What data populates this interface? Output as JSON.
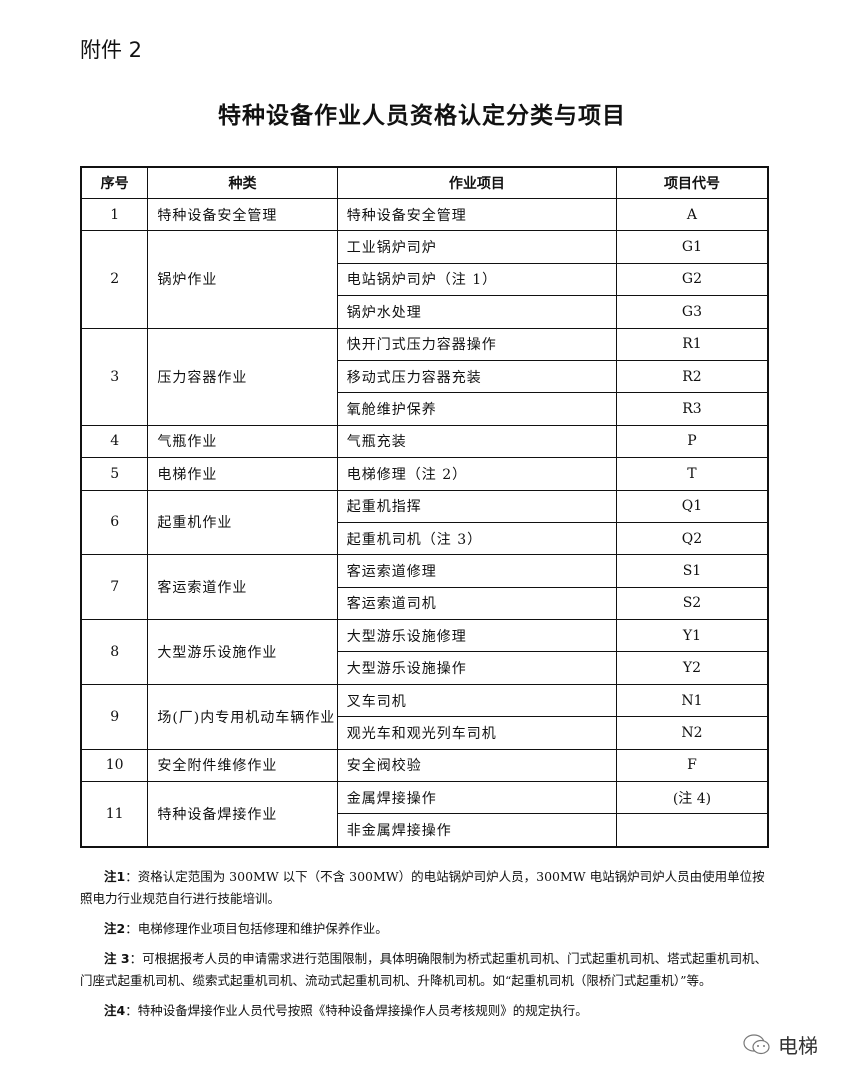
{
  "attachment": "附件 2",
  "title": "特种设备作业人员资格认定分类与项目",
  "headers": [
    "序号",
    "种类",
    "作业项目",
    "项目代号"
  ],
  "groups": [
    {
      "no": "1",
      "category": "特种设备安全管理",
      "items": [
        {
          "name": "特种设备安全管理",
          "code": "A"
        }
      ]
    },
    {
      "no": "2",
      "category": "锅炉作业",
      "items": [
        {
          "name": "工业锅炉司炉",
          "code": "G1"
        },
        {
          "name": "电站锅炉司炉（注 1）",
          "code": "G2"
        },
        {
          "name": "锅炉水处理",
          "code": "G3"
        }
      ]
    },
    {
      "no": "3",
      "category": "压力容器作业",
      "items": [
        {
          "name": "快开门式压力容器操作",
          "code": "R1"
        },
        {
          "name": "移动式压力容器充装",
          "code": "R2"
        },
        {
          "name": "氧舱维护保养",
          "code": "R3"
        }
      ]
    },
    {
      "no": "4",
      "category": "气瓶作业",
      "items": [
        {
          "name": "气瓶充装",
          "code": "P"
        }
      ]
    },
    {
      "no": "5",
      "category": "电梯作业",
      "items": [
        {
          "name": "电梯修理（注 2）",
          "code": "T"
        }
      ]
    },
    {
      "no": "6",
      "category": "起重机作业",
      "items": [
        {
          "name": "起重机指挥",
          "code": "Q1"
        },
        {
          "name": "起重机司机（注 3）",
          "code": "Q2"
        }
      ]
    },
    {
      "no": "7",
      "category": "客运索道作业",
      "items": [
        {
          "name": "客运索道修理",
          "code": "S1"
        },
        {
          "name": "客运索道司机",
          "code": "S2"
        }
      ]
    },
    {
      "no": "8",
      "category": "大型游乐设施作业",
      "items": [
        {
          "name": "大型游乐设施修理",
          "code": "Y1"
        },
        {
          "name": "大型游乐设施操作",
          "code": "Y2"
        }
      ]
    },
    {
      "no": "9",
      "category": "场(厂)内专用机动车辆作业",
      "items": [
        {
          "name": "叉车司机",
          "code": "N1"
        },
        {
          "name": "观光车和观光列车司机",
          "code": "N2"
        }
      ]
    },
    {
      "no": "10",
      "category": "安全附件维修作业",
      "items": [
        {
          "name": "安全阀校验",
          "code": "F"
        }
      ]
    },
    {
      "no": "11",
      "category": "特种设备焊接作业",
      "items": [
        {
          "name": "金属焊接操作",
          "code": "(注 4)"
        },
        {
          "name": "非金属焊接操作",
          "code": ""
        }
      ]
    }
  ],
  "notes": [
    {
      "label": "注1",
      "text": "：资格认定范围为 300MW 以下（不含 300MW）的电站锅炉司炉人员，300MW 电站锅炉司炉人员由使用单位按照电力行业规范自行进行技能培训。"
    },
    {
      "label": "注2",
      "text": "：电梯修理作业项目包括修理和维护保养作业。"
    },
    {
      "label": "注 3",
      "text": "：可根据报考人员的申请需求进行范围限制，具体明确限制为桥式起重机司机、门式起重机司机、塔式起重机司机、门座式起重机司机、缆索式起重机司机、流动式起重机司机、升降机司机。如“起重机司机（限桥门式起重机）”等。"
    },
    {
      "label": "注4",
      "text": "：特种设备焊接作业人员代号按照《特种设备焊接操作人员考核规则》的规定执行。"
    }
  ],
  "watermark": "电梯"
}
